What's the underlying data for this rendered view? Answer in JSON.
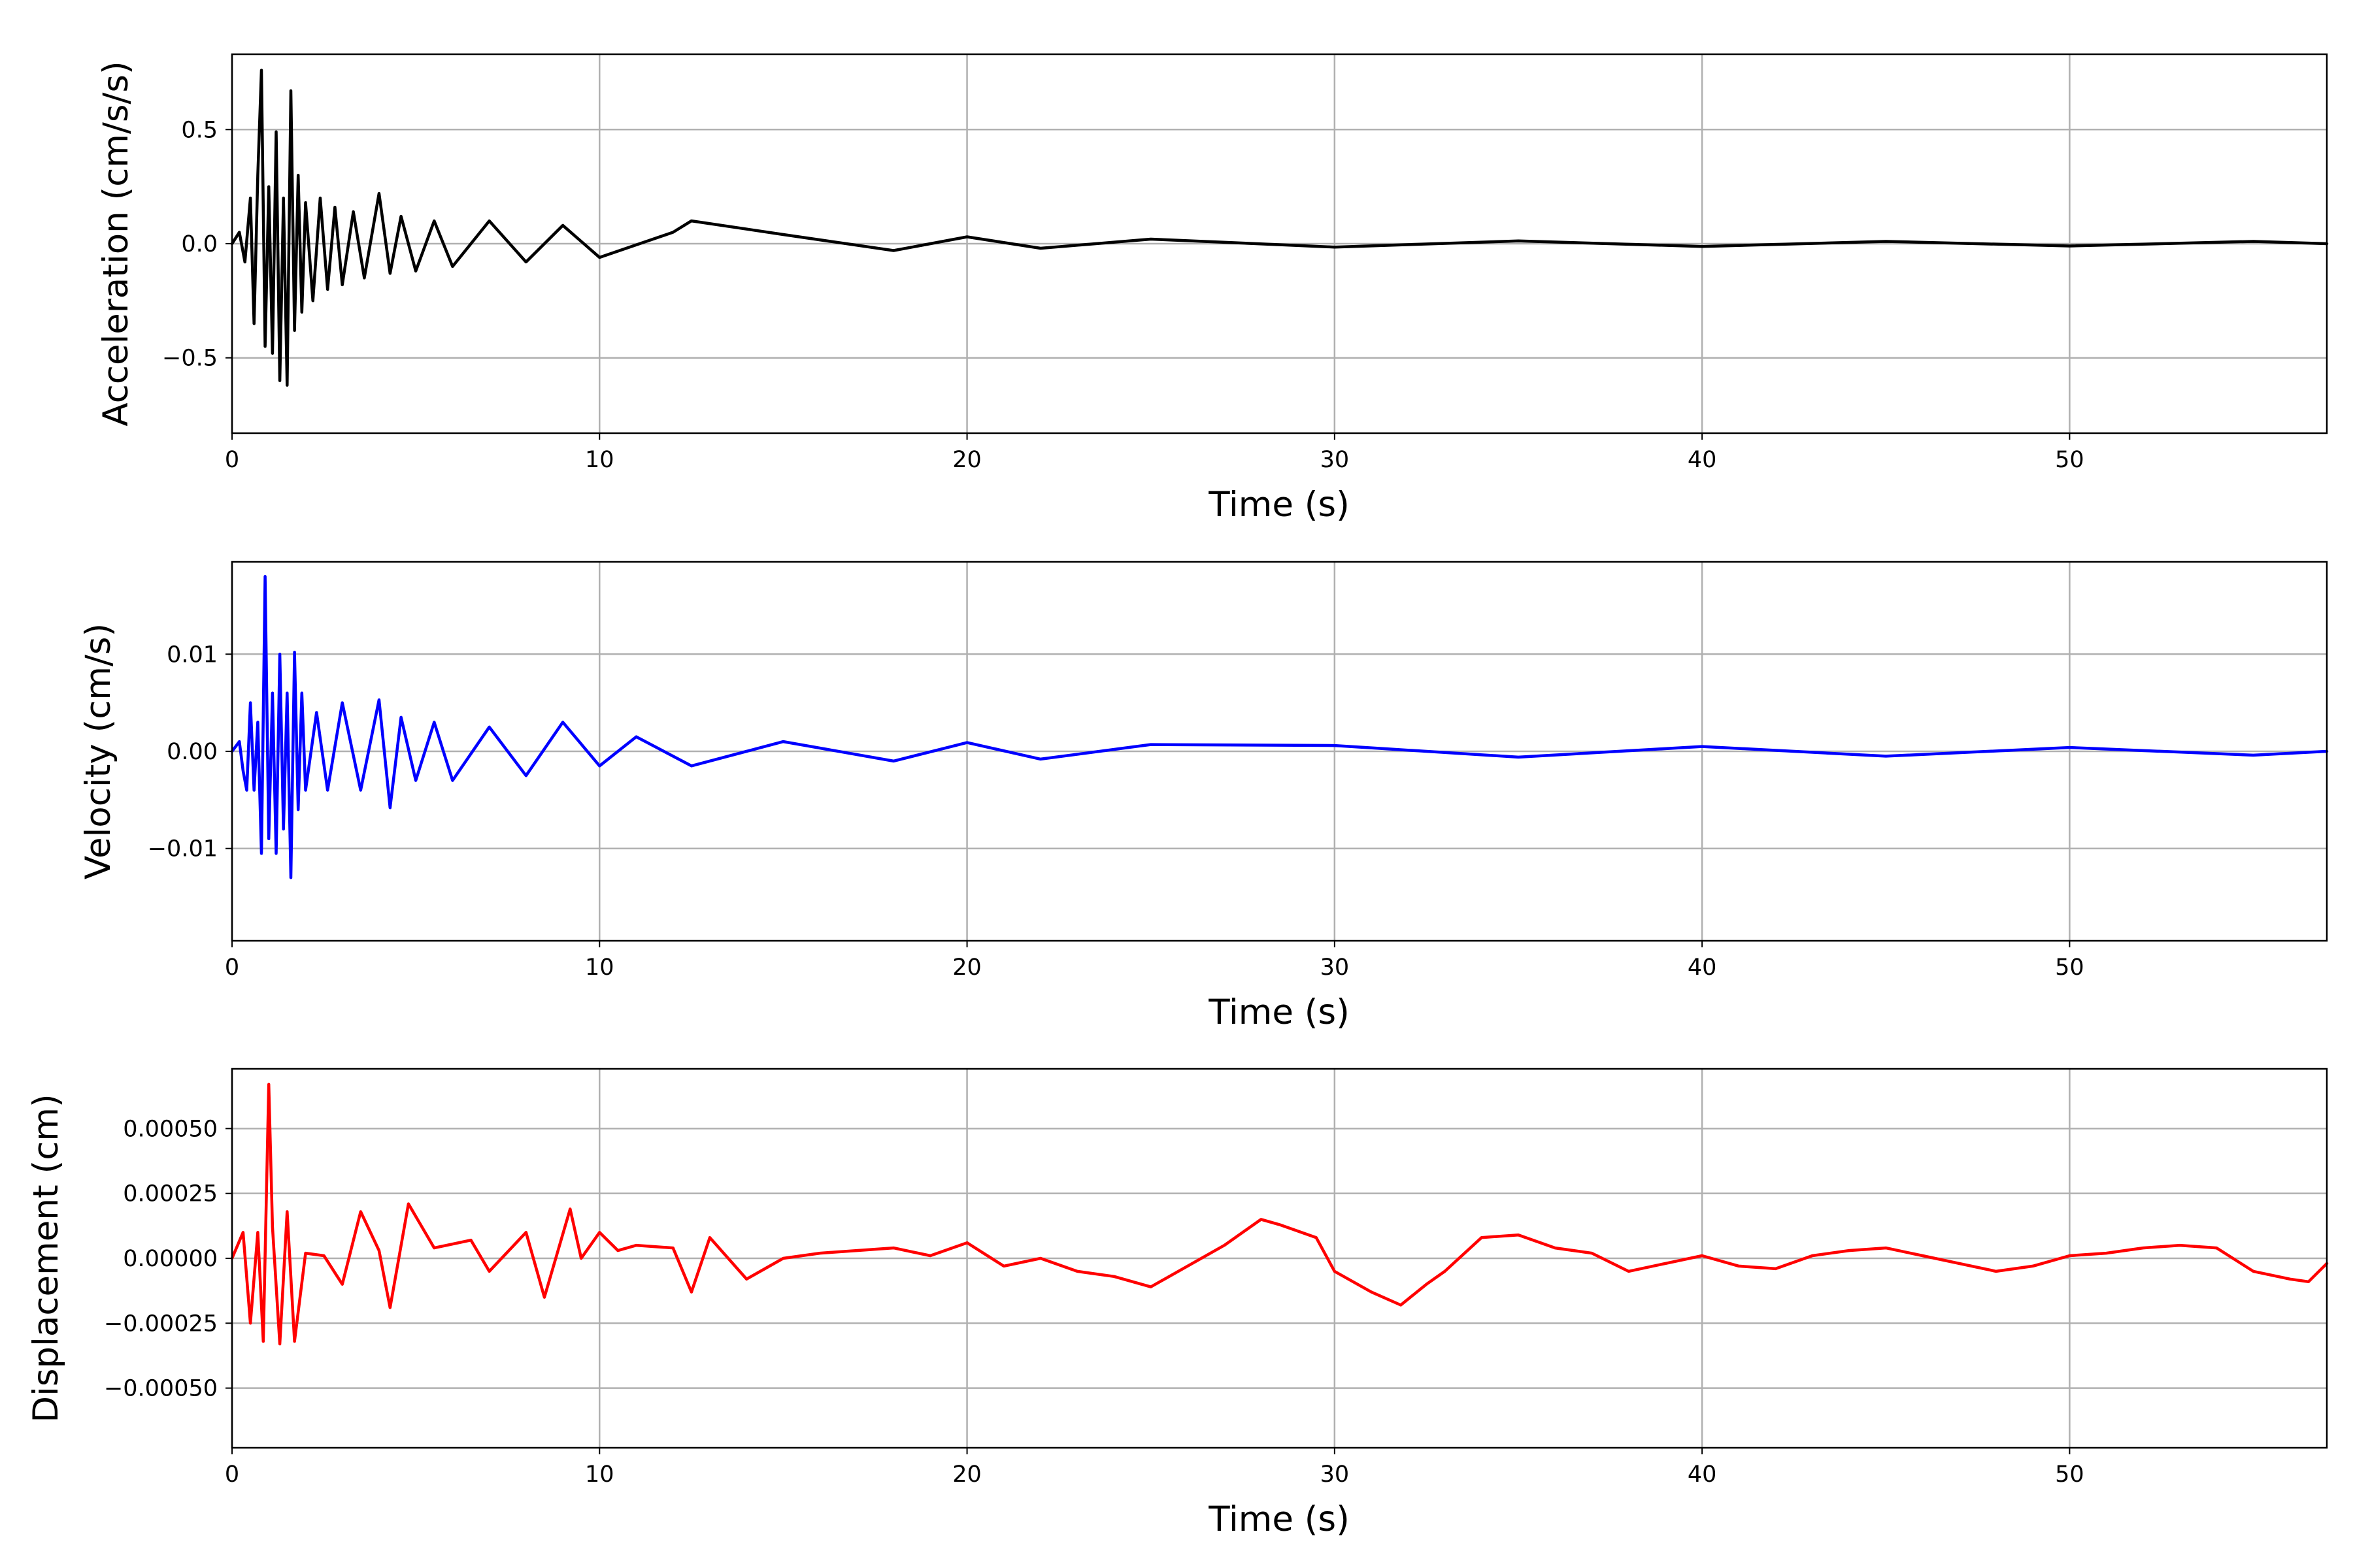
{
  "chart_data": [
    {
      "type": "line",
      "xlabel": "Time (s)",
      "ylabel": "Acceleration (cm/s/s)",
      "xlim": [
        0,
        57
      ],
      "ylim": [
        -0.83,
        0.83
      ],
      "xticks": [
        0,
        10,
        20,
        30,
        40,
        50
      ],
      "xtick_labels": [
        "0",
        "10",
        "20",
        "30",
        "40",
        "50"
      ],
      "yticks": [
        -0.5,
        0.0,
        0.5
      ],
      "ytick_labels": [
        "−0.5",
        "0.0",
        "0.5"
      ],
      "grid": true,
      "series": [
        {
          "color": "#000000",
          "x": [
            0,
            0.2,
            0.35,
            0.5,
            0.6,
            0.7,
            0.8,
            0.9,
            1.0,
            1.1,
            1.2,
            1.3,
            1.4,
            1.5,
            1.6,
            1.7,
            1.8,
            1.9,
            2.0,
            2.2,
            2.4,
            2.6,
            2.8,
            3.0,
            3.3,
            3.6,
            4.0,
            4.3,
            4.6,
            5.0,
            5.5,
            6.0,
            7.0,
            8.0,
            9.0,
            10.0,
            12.0,
            12.5,
            15.0,
            18.0,
            20.0,
            22.0,
            25.0,
            30.0,
            35.0,
            40.0,
            45.0,
            50.0,
            55.0,
            57.0
          ],
          "y": [
            0.0,
            0.05,
            -0.08,
            0.2,
            -0.35,
            0.3,
            0.76,
            -0.45,
            0.25,
            -0.48,
            0.49,
            -0.6,
            0.2,
            -0.62,
            0.67,
            -0.38,
            0.3,
            -0.3,
            0.18,
            -0.25,
            0.2,
            -0.2,
            0.16,
            -0.18,
            0.14,
            -0.15,
            0.22,
            -0.13,
            0.12,
            -0.12,
            0.1,
            -0.1,
            0.1,
            -0.08,
            0.08,
            -0.06,
            0.05,
            0.1,
            0.04,
            -0.03,
            0.03,
            -0.02,
            0.02,
            -0.015,
            0.012,
            -0.012,
            0.01,
            -0.01,
            0.01,
            0.0
          ]
        }
      ]
    },
    {
      "type": "line",
      "xlabel": "Time (s)",
      "ylabel": "Velocity (cm/s)",
      "xlim": [
        0,
        57
      ],
      "ylim": [
        -0.0195,
        0.0195
      ],
      "xticks": [
        0,
        10,
        20,
        30,
        40,
        50
      ],
      "xtick_labels": [
        "0",
        "10",
        "20",
        "30",
        "40",
        "50"
      ],
      "yticks": [
        -0.01,
        0.0,
        0.01
      ],
      "ytick_labels": [
        "−0.01",
        "0.00",
        "0.01"
      ],
      "grid": true,
      "series": [
        {
          "color": "#0000ff",
          "x": [
            0,
            0.2,
            0.3,
            0.4,
            0.5,
            0.6,
            0.7,
            0.8,
            0.9,
            1.0,
            1.1,
            1.2,
            1.3,
            1.4,
            1.5,
            1.6,
            1.7,
            1.8,
            1.9,
            2.0,
            2.3,
            2.6,
            3.0,
            3.5,
            4.0,
            4.3,
            4.6,
            5.0,
            5.5,
            6.0,
            7.0,
            8.0,
            9.0,
            10.0,
            11.0,
            12.5,
            15.0,
            18.0,
            20.0,
            22.0,
            25.0,
            30.0,
            35.0,
            40.0,
            45.0,
            50.0,
            55.0,
            57.0
          ],
          "y": [
            0.0,
            0.001,
            -0.002,
            -0.004,
            0.005,
            -0.004,
            0.003,
            -0.0105,
            0.018,
            -0.009,
            0.006,
            -0.0105,
            0.01,
            -0.008,
            0.006,
            -0.013,
            0.0102,
            -0.006,
            0.006,
            -0.004,
            0.004,
            -0.004,
            0.005,
            -0.004,
            0.0053,
            -0.0058,
            0.0035,
            -0.003,
            0.003,
            -0.003,
            0.0025,
            -0.0025,
            0.003,
            -0.0015,
            0.0015,
            -0.0015,
            0.001,
            -0.001,
            0.0009,
            -0.0008,
            0.0007,
            0.0006,
            -0.0006,
            0.0005,
            -0.0005,
            0.0004,
            -0.0004,
            0.0
          ]
        }
      ]
    },
    {
      "type": "line",
      "xlabel": "Time (s)",
      "ylabel": "Displacement (cm)",
      "xlim": [
        0,
        57
      ],
      "ylim": [
        -0.00073,
        0.00073
      ],
      "xticks": [
        0,
        10,
        20,
        30,
        40,
        50
      ],
      "xtick_labels": [
        "0",
        "10",
        "20",
        "30",
        "40",
        "50"
      ],
      "yticks": [
        -0.0005,
        -0.00025,
        0.0,
        0.00025,
        0.0005
      ],
      "ytick_labels": [
        "−0.00050",
        "−0.00025",
        "0.00000",
        "0.00025",
        "0.00050"
      ],
      "grid": true,
      "series": [
        {
          "color": "#ff0000",
          "x": [
            0,
            0.3,
            0.5,
            0.7,
            0.85,
            1.0,
            1.1,
            1.3,
            1.5,
            1.7,
            2.0,
            2.5,
            3.0,
            3.5,
            4.0,
            4.3,
            4.8,
            5.5,
            6.5,
            7.0,
            8.0,
            8.5,
            9.2,
            9.5,
            10.0,
            10.5,
            11.0,
            12.0,
            12.5,
            13.0,
            14.0,
            15.0,
            16.0,
            17.0,
            18.0,
            19.0,
            20.0,
            21.0,
            22.0,
            23.0,
            24.0,
            25.0,
            26.0,
            27.0,
            28.0,
            28.5,
            29.5,
            30.0,
            31.0,
            31.8,
            32.5,
            33.0,
            34.0,
            35.0,
            36.0,
            37.0,
            38.0,
            39.0,
            40.0,
            41.0,
            42.0,
            43.0,
            44.0,
            45.0,
            46.0,
            47.0,
            48.0,
            49.0,
            50.0,
            51.0,
            52.0,
            53.0,
            54.0,
            55.0,
            56.0,
            56.5,
            57.0
          ],
          "y": [
            0.0,
            0.0001,
            -0.00025,
            0.0001,
            -0.00032,
            0.00067,
            0.00012,
            -0.00033,
            0.00018,
            -0.00032,
            2e-05,
            1e-05,
            -0.0001,
            0.00018,
            3e-05,
            -0.00019,
            0.00021,
            4e-05,
            7e-05,
            -5e-05,
            0.0001,
            -0.00015,
            0.00019,
            0.0,
            0.0001,
            3e-05,
            5e-05,
            4e-05,
            -0.00013,
            8e-05,
            -8e-05,
            0.0,
            2e-05,
            3e-05,
            4e-05,
            1e-05,
            6e-05,
            -3e-05,
            0.0,
            -5e-05,
            -7e-05,
            -0.00011,
            -3e-05,
            5e-05,
            0.00015,
            0.00013,
            8e-05,
            -5e-05,
            -0.00013,
            -0.00018,
            -0.0001,
            -5e-05,
            8e-05,
            9e-05,
            4e-05,
            2e-05,
            -5e-05,
            -2e-05,
            1e-05,
            -3e-05,
            -4e-05,
            1e-05,
            3e-05,
            4e-05,
            1e-05,
            -2e-05,
            -5e-05,
            -3e-05,
            1e-05,
            2e-05,
            4e-05,
            5e-05,
            4e-05,
            -5e-05,
            -8e-05,
            -9e-05,
            -2e-05
          ]
        }
      ]
    }
  ]
}
